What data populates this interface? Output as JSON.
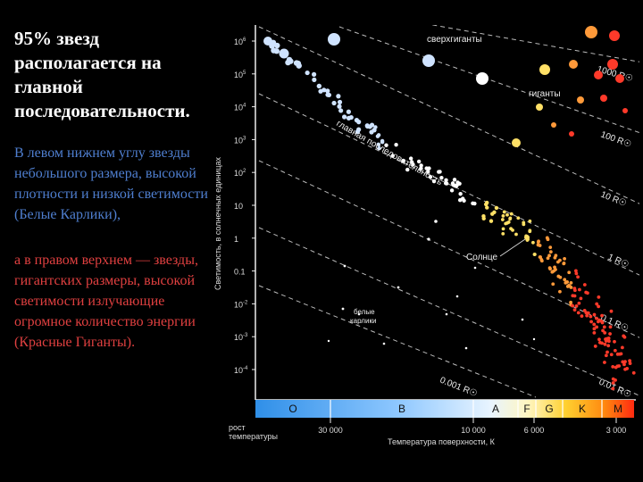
{
  "left_panel": {
    "headline": "95% звезд располагается на главной последовательности.",
    "paragraph_white_dwarfs": "В левом нижнем углу звезды небольшого размера, высокой плотности и низкой светимости (Белые Карлики),",
    "paragraph_red_giants": "а в правом верхнем — звезды, гигантских размеры, высокой светимости излучающие огромное количество энергии (Красные Гиганты)."
  },
  "diagram": {
    "y_axis_title": "Светимость, в солнечных единицах",
    "y_ticks": [
      {
        "mant": "10",
        "exp": "6"
      },
      {
        "mant": "10",
        "exp": "5"
      },
      {
        "mant": "10",
        "exp": "4"
      },
      {
        "mant": "10",
        "exp": "3"
      },
      {
        "mant": "10",
        "exp": "2"
      },
      {
        "mant": "10",
        "exp": ""
      },
      {
        "mant": "1",
        "exp": ""
      },
      {
        "mant": "0.1",
        "exp": ""
      },
      {
        "mant": "10",
        "exp": "-2"
      },
      {
        "mant": "10",
        "exp": "-3"
      },
      {
        "mant": "10",
        "exp": "-4"
      }
    ],
    "x_axis_title": "Температура поверхности, К",
    "x_growth_line1": "рост",
    "x_growth_line2": "температуры",
    "x_ticks": [
      "30 000",
      "10 000",
      "6 000",
      "3 000"
    ],
    "spectral_classes": [
      "O",
      "B",
      "A",
      "F",
      "G",
      "K",
      "M"
    ],
    "radius_labels": [
      "1000 R☉",
      "100 R☉",
      "10 R☉",
      "1 R☉",
      "0.1 R☉",
      "0.01 R☉",
      "0.001 R☉"
    ],
    "region_supergiants": "сверхгиганты",
    "region_giants": "гиганты",
    "region_main_sequence": "главная последовательность",
    "region_white_dwarfs_line1": "белые",
    "region_white_dwarfs_line2": "карлики",
    "sun_label": "Солнце",
    "colors": {
      "blue_star": "#cfe3ff",
      "white_star": "#ffffff",
      "yellow_star": "#ffe066",
      "orange_star": "#ff9a3a",
      "red_star": "#ff3a2a",
      "dwarf_star": "#ffffff",
      "text_blue": "#4f7fd0",
      "text_red": "#e04040"
    }
  }
}
